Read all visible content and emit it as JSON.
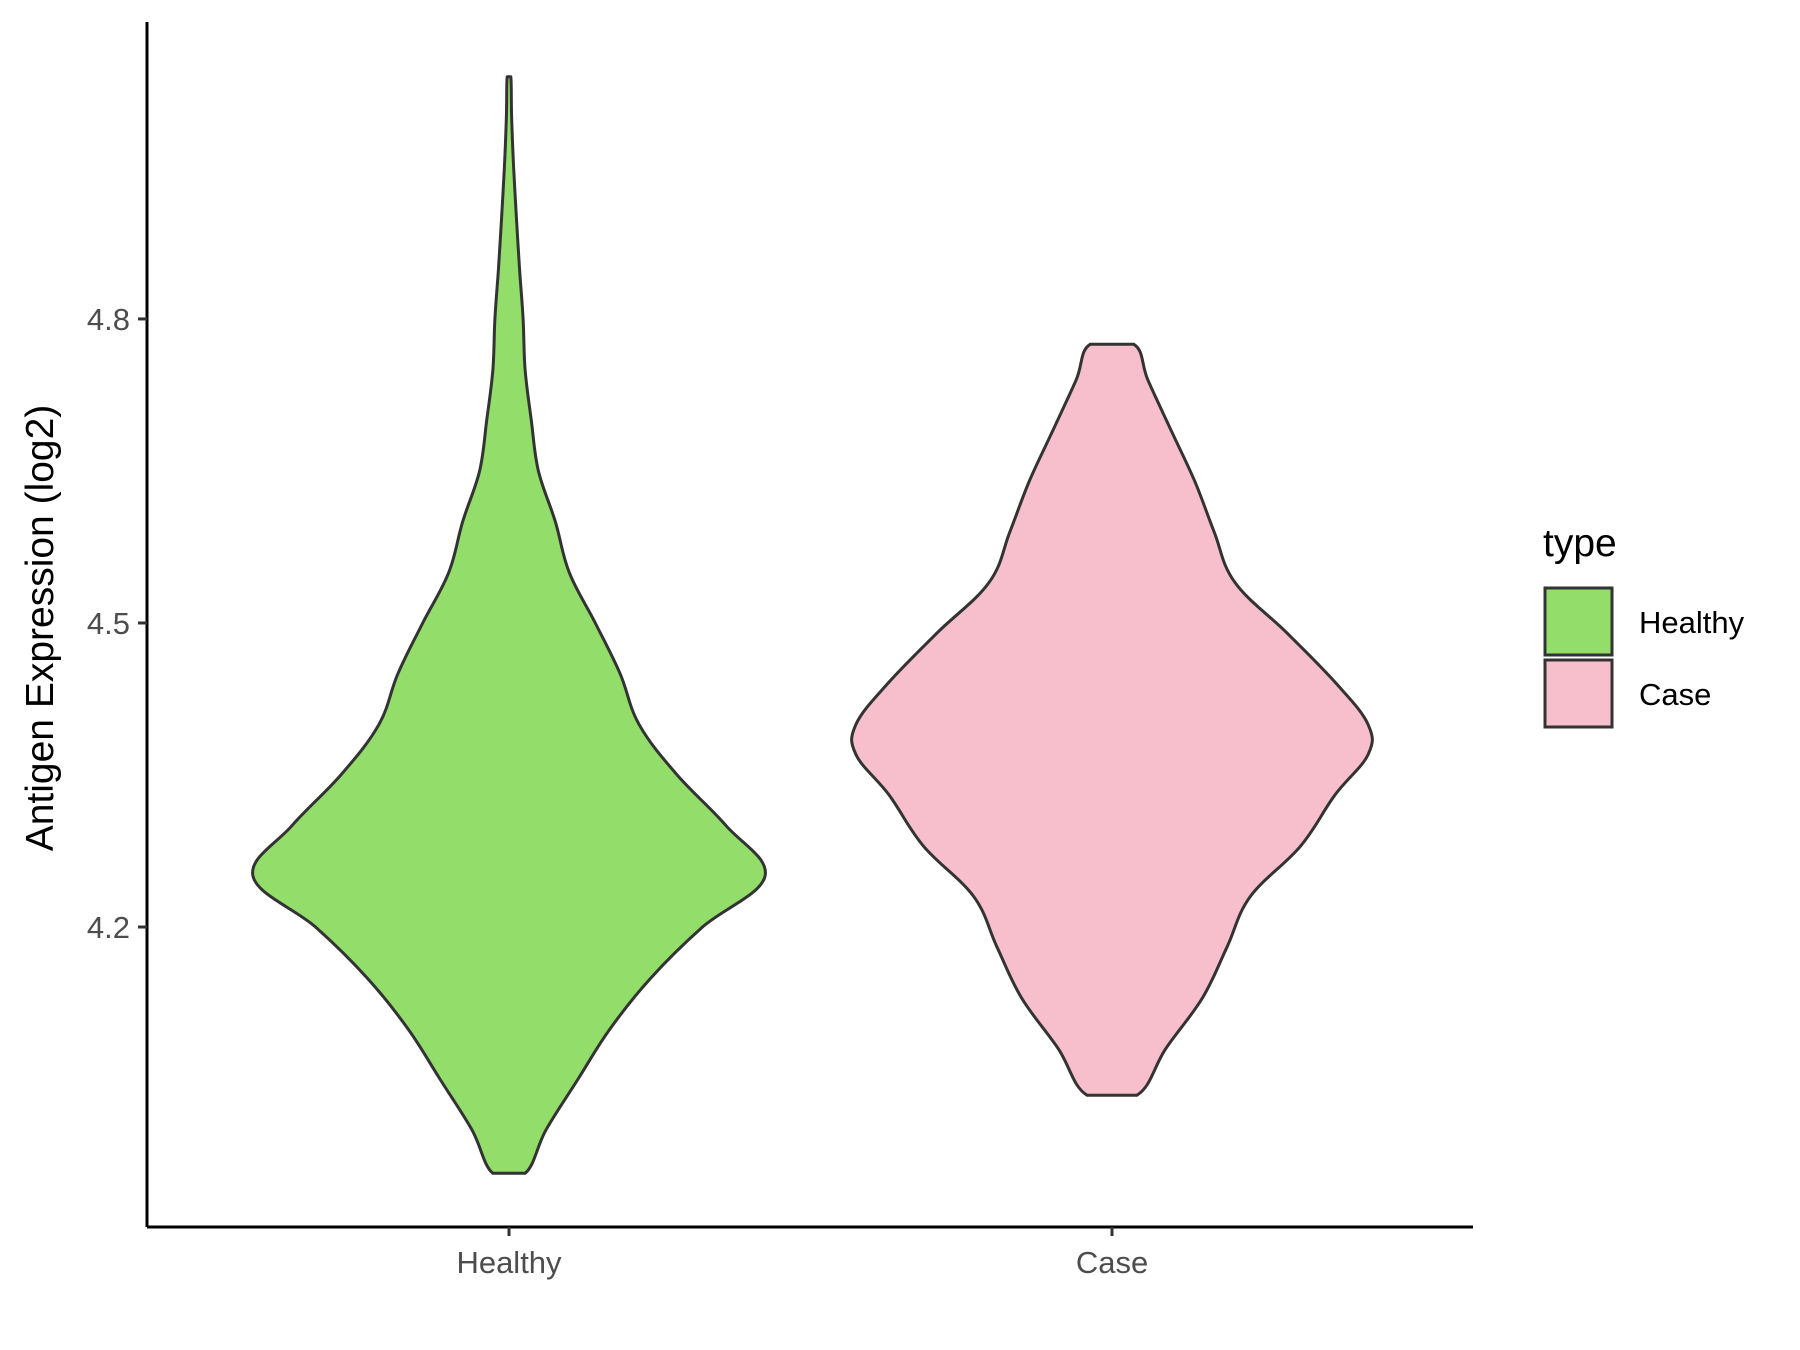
{
  "chart_data": {
    "type": "violin",
    "title": "",
    "xlabel": "",
    "ylabel": "Antigen Expression (log2)",
    "categories": [
      "Healthy",
      "Case"
    ],
    "y_ticks": [
      4.2,
      4.5,
      4.8
    ],
    "ylim": [
      3.904,
      5.093
    ],
    "grid": false,
    "legend": {
      "title": "type",
      "position": "right",
      "entries": [
        {
          "label": "Healthy",
          "color": "#93DD6A"
        },
        {
          "label": "Case",
          "color": "#F7BFCB"
        }
      ]
    },
    "series": [
      {
        "name": "Healthy",
        "color": "#93DD6A",
        "y_min": 3.957,
        "y_max": 5.039,
        "density": [
          [
            3.957,
            0.063
          ],
          [
            4.0,
            0.145
          ],
          [
            4.05,
            0.27
          ],
          [
            4.1,
            0.396
          ],
          [
            4.15,
            0.555
          ],
          [
            4.2,
            0.756
          ],
          [
            4.25,
            1.0
          ],
          [
            4.3,
            0.848
          ],
          [
            4.35,
            0.657
          ],
          [
            4.4,
            0.508
          ],
          [
            4.45,
            0.434
          ],
          [
            4.5,
            0.337
          ],
          [
            4.55,
            0.235
          ],
          [
            4.6,
            0.181
          ],
          [
            4.65,
            0.115
          ],
          [
            4.7,
            0.087
          ],
          [
            4.75,
            0.063
          ],
          [
            4.8,
            0.055
          ],
          [
            4.85,
            0.041
          ],
          [
            4.9,
            0.029
          ],
          [
            4.95,
            0.018
          ],
          [
            5.0,
            0.01
          ],
          [
            5.039,
            0.007
          ]
        ]
      },
      {
        "name": "Case",
        "color": "#F7BFCB",
        "y_min": 4.034,
        "y_max": 4.775,
        "density": [
          [
            4.034,
            0.097
          ],
          [
            4.08,
            0.21
          ],
          [
            4.13,
            0.353
          ],
          [
            4.18,
            0.449
          ],
          [
            4.23,
            0.54
          ],
          [
            4.28,
            0.737
          ],
          [
            4.33,
            0.87
          ],
          [
            4.37,
            1.0
          ],
          [
            4.4,
            1.0
          ],
          [
            4.44,
            0.877
          ],
          [
            4.49,
            0.684
          ],
          [
            4.54,
            0.48
          ],
          [
            4.59,
            0.399
          ],
          [
            4.64,
            0.323
          ],
          [
            4.69,
            0.231
          ],
          [
            4.74,
            0.14
          ],
          [
            4.775,
            0.085
          ]
        ]
      }
    ]
  }
}
